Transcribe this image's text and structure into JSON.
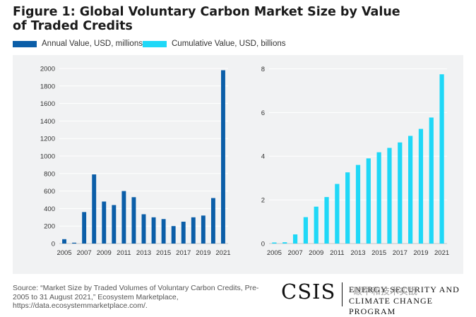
{
  "title": "Figure 1: Global Voluntary Carbon Market Size by Value of Traded Credits",
  "colors": {
    "annual": "#0b5ea8",
    "cumulative": "#1fd8f7",
    "panel": "#f1f2f3",
    "grid": "#ffffff",
    "axis": "#333333"
  },
  "legend": {
    "annual": "Annual Value, USD, millions",
    "cumulative": "Cumulative Value, USD, billions"
  },
  "source": "Source: “Market Size by Traded Volumes of Voluntary Carbon Credits, Pre-2005 to 31 August 2021,” Ecosystem Marketplace, https://data.ecosystemmarketplace.com/.",
  "logo": {
    "csis": "CSIS",
    "line1": "ENERGY SECURITY AND",
    "line2": "CLIMATE CHANGE PROGRAM",
    "watermark": "碳中和技术实战"
  },
  "chart_data": [
    {
      "type": "bar",
      "categories": [
        "2005",
        "2006",
        "2007",
        "2008",
        "2009",
        "2010",
        "2011",
        "2012",
        "2013",
        "2014",
        "2015",
        "2016",
        "2017",
        "2018",
        "2019",
        "2020",
        "2021"
      ],
      "tick_labels": [
        "2005",
        "2007",
        "2009",
        "2011",
        "2013",
        "2015",
        "2017",
        "2019",
        "2021"
      ],
      "series": [
        {
          "name": "Annual Value, USD, millions",
          "values": [
            50,
            10,
            360,
            790,
            480,
            440,
            600,
            530,
            335,
            300,
            280,
            200,
            250,
            300,
            320,
            520,
            1980
          ]
        }
      ],
      "ylim": [
        0,
        2000
      ],
      "yticks": [
        0,
        200,
        400,
        600,
        800,
        1000,
        1200,
        1400,
        1600,
        1800,
        2000
      ],
      "grid": true
    },
    {
      "type": "bar",
      "categories": [
        "2005",
        "2006",
        "2007",
        "2008",
        "2009",
        "2010",
        "2011",
        "2012",
        "2013",
        "2014",
        "2015",
        "2016",
        "2017",
        "2018",
        "2019",
        "2020",
        "2021"
      ],
      "tick_labels": [
        "2005",
        "2007",
        "2009",
        "2011",
        "2013",
        "2015",
        "2017",
        "2019",
        "2021"
      ],
      "series": [
        {
          "name": "Cumulative Value, USD, billions",
          "values": [
            0.05,
            0.06,
            0.42,
            1.21,
            1.69,
            2.13,
            2.73,
            3.26,
            3.6,
            3.9,
            4.18,
            4.38,
            4.63,
            4.93,
            5.25,
            5.77,
            7.75
          ]
        }
      ],
      "ylim": [
        0,
        8.5
      ],
      "yticks": [
        0,
        2,
        4,
        6,
        8
      ],
      "grid": true
    }
  ]
}
